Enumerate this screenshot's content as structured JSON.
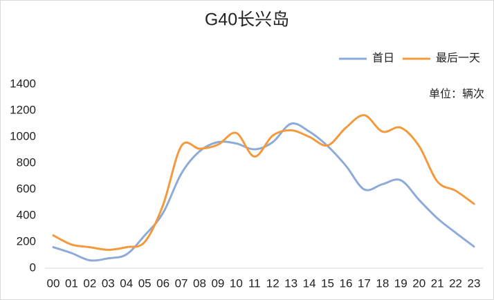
{
  "chart_data": {
    "type": "line",
    "title": "G40长兴岛",
    "annotation": "单位：辆次",
    "categories": [
      "00",
      "01",
      "02",
      "03",
      "04",
      "05",
      "06",
      "07",
      "08",
      "09",
      "10",
      "11",
      "12",
      "13",
      "14",
      "15",
      "16",
      "17",
      "18",
      "19",
      "20",
      "21",
      "22",
      "23"
    ],
    "series": [
      {
        "name": "首日",
        "color": "#8eaad8",
        "values": [
          160,
          115,
          60,
          75,
          105,
          250,
          420,
          720,
          890,
          960,
          950,
          905,
          960,
          1100,
          1040,
          930,
          780,
          600,
          640,
          670,
          520,
          380,
          270,
          165
        ]
      },
      {
        "name": "最后一天",
        "color": "#f39a3c",
        "values": [
          250,
          180,
          160,
          140,
          160,
          200,
          480,
          930,
          910,
          940,
          1030,
          850,
          1010,
          1050,
          1000,
          935,
          1070,
          1165,
          1040,
          1070,
          930,
          660,
          590,
          490
        ]
      }
    ],
    "ylim": [
      0,
      1400
    ],
    "yticks": [
      0,
      200,
      400,
      600,
      800,
      1000,
      1200,
      1400
    ],
    "grid": false
  }
}
